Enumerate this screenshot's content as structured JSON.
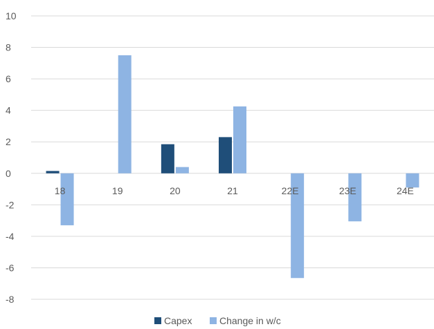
{
  "chart_data": {
    "type": "bar",
    "categories": [
      "18",
      "19",
      "20",
      "21",
      "22E",
      "23E",
      "24E"
    ],
    "series": [
      {
        "name": "Capex",
        "values": [
          0.15,
          0,
          1.85,
          2.3,
          0,
          0,
          0
        ]
      },
      {
        "name": "Change in w/c",
        "values": [
          -3.3,
          7.5,
          0.4,
          4.25,
          -6.65,
          -3.05,
          -0.9
        ]
      }
    ],
    "ylim": [
      -8,
      10
    ],
    "yticks": [
      "10",
      "8",
      "6",
      "4",
      "2",
      "0",
      "-2",
      "-4",
      "-6",
      "-8"
    ],
    "grid": true,
    "legend_position": "bottom",
    "colors": {
      "Capex": "#1F4E79",
      "Change in w/c": "#8EB4E3",
      "grid": "#D9D9D9",
      "text": "#595959"
    }
  }
}
